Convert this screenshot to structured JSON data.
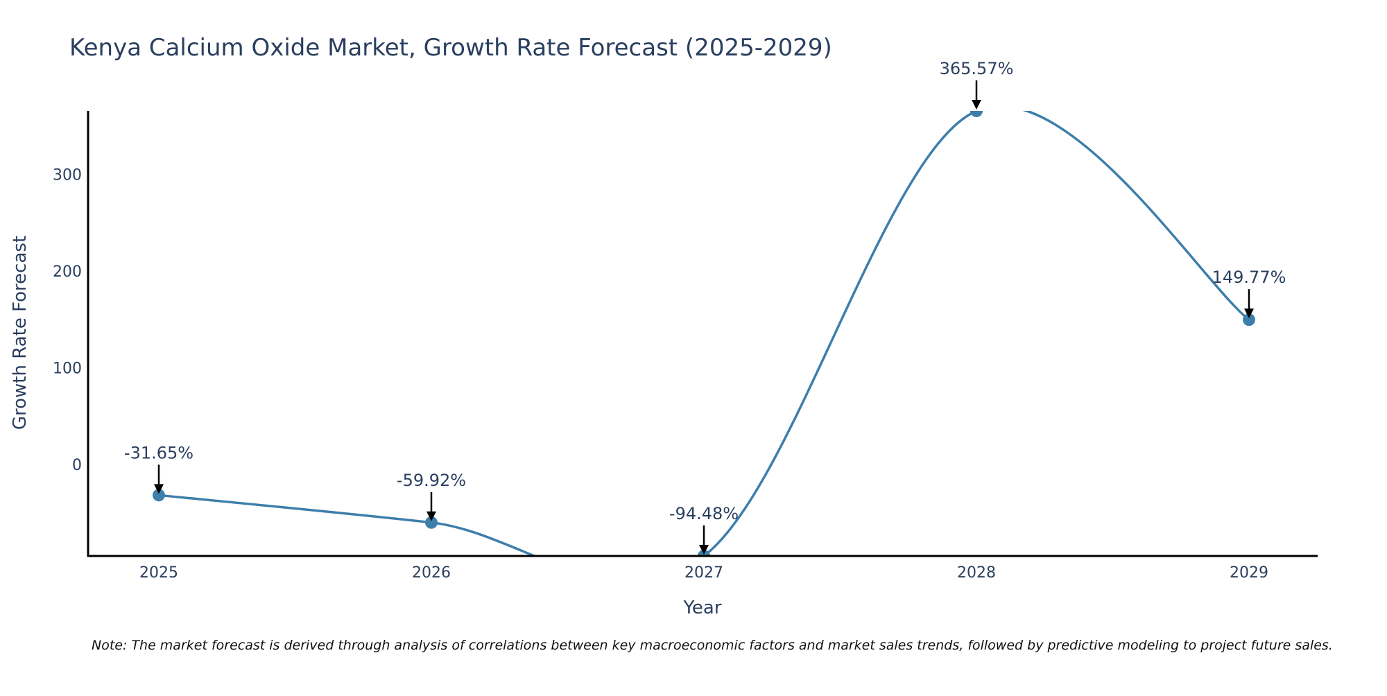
{
  "colors": {
    "line": "#3d7eab",
    "marker": "#3d7eab",
    "axis": "#000000",
    "text": "#2a3f5f",
    "arrow": "#000000"
  },
  "chart_data": {
    "type": "line",
    "title": "Kenya Calcium Oxide Market, Growth Rate Forecast (2025-2029)",
    "xlabel": "Year",
    "ylabel": "Growth Rate Forecast",
    "categories": [
      "2025",
      "2026",
      "2027",
      "2028",
      "2029"
    ],
    "series": [
      {
        "name": "Growth Rate Forecast",
        "values": [
          -31.65,
          -59.92,
          -94.48,
          365.57,
          149.77
        ],
        "labels": [
          "-31.65%",
          "-59.92%",
          "-94.48%",
          "365.57%",
          "149.77%"
        ]
      }
    ],
    "yticks": [
      0,
      100,
      200,
      300
    ],
    "ytick_labels": [
      "0",
      "100",
      "200",
      "300"
    ],
    "ylim": [
      -94.48,
      365.57
    ],
    "grid": false,
    "legend": "none",
    "line_shape": "spline"
  },
  "note": "Note: The market forecast is derived through analysis of correlations between key macroeconomic factors and market sales trends, followed by predictive modeling to project future sales."
}
